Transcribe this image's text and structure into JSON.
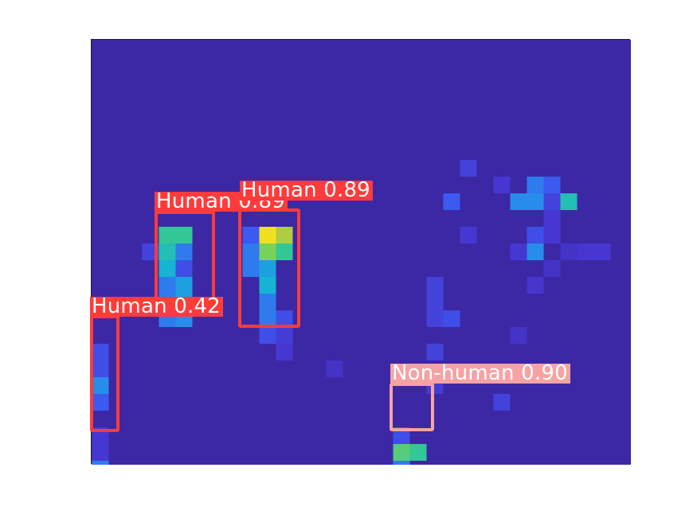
{
  "colors": {
    "background": "#3c28a4",
    "human": "#ff3b3b",
    "non_human": "#f6a3a3",
    "label_text": "#ffffff"
  },
  "detections": [
    {
      "class": "human",
      "label": "Human 0.89"
    },
    {
      "class": "human",
      "label": "Human 0.89"
    },
    {
      "class": "human",
      "label": "Human 0.42"
    },
    {
      "class": "non-human",
      "label": "Non-human 0.90"
    }
  ],
  "heatmap_cells": [
    {
      "col": 22,
      "row": 7,
      "v": 0.25
    },
    {
      "col": 24,
      "row": 8,
      "v": 0.2
    },
    {
      "col": 26,
      "row": 8,
      "v": 0.45
    },
    {
      "col": 27,
      "row": 8,
      "v": 0.35
    },
    {
      "col": 21,
      "row": 9,
      "v": 0.35
    },
    {
      "col": 25,
      "row": 9,
      "v": 0.5
    },
    {
      "col": 26,
      "row": 9,
      "v": 0.5
    },
    {
      "col": 27,
      "row": 9,
      "v": 0.25
    },
    {
      "col": 28,
      "row": 9,
      "v": 0.65
    },
    {
      "col": 27,
      "row": 10,
      "v": 0.2
    },
    {
      "col": 22,
      "row": 11,
      "v": 0.2
    },
    {
      "col": 26,
      "row": 11,
      "v": 0.3
    },
    {
      "col": 27,
      "row": 11,
      "v": 0.2
    },
    {
      "col": 25,
      "row": 12,
      "v": 0.2
    },
    {
      "col": 26,
      "row": 12,
      "v": 0.5
    },
    {
      "col": 28,
      "row": 12,
      "v": 0.15
    },
    {
      "col": 29,
      "row": 12,
      "v": 0.2
    },
    {
      "col": 30,
      "row": 12,
      "v": 0.2
    },
    {
      "col": 27,
      "row": 13,
      "v": 0.15
    },
    {
      "col": 20,
      "row": 14,
      "v": 0.25
    },
    {
      "col": 26,
      "row": 14,
      "v": 0.18
    },
    {
      "col": 20,
      "row": 15,
      "v": 0.25
    },
    {
      "col": 20,
      "row": 16,
      "v": 0.25
    },
    {
      "col": 21,
      "row": 16,
      "v": 0.3
    },
    {
      "col": 25,
      "row": 17,
      "v": 0.15
    },
    {
      "col": 20,
      "row": 18,
      "v": 0.25
    },
    {
      "col": 14,
      "row": 19,
      "v": 0.15
    },
    {
      "col": 20,
      "row": 20,
      "v": 0.22
    },
    {
      "col": 24,
      "row": 21,
      "v": 0.25
    },
    {
      "col": 4,
      "row": 11,
      "v": 0.7
    },
    {
      "col": 5,
      "row": 11,
      "v": 0.7
    },
    {
      "col": 4,
      "row": 12,
      "v": 0.7
    },
    {
      "col": 5,
      "row": 12,
      "v": 0.45
    },
    {
      "col": 4,
      "row": 13,
      "v": 0.6
    },
    {
      "col": 5,
      "row": 13,
      "v": 0.3
    },
    {
      "col": 4,
      "row": 14,
      "v": 0.45
    },
    {
      "col": 5,
      "row": 14,
      "v": 0.55
    },
    {
      "col": 4,
      "row": 15,
      "v": 0.45
    },
    {
      "col": 5,
      "row": 15,
      "v": 0.55
    },
    {
      "col": 4,
      "row": 16,
      "v": 0.45
    },
    {
      "col": 5,
      "row": 16,
      "v": 0.5
    },
    {
      "col": 4,
      "row": 12,
      "v": 0.65
    },
    {
      "col": 3,
      "row": 12,
      "v": 0.25
    },
    {
      "col": 9,
      "row": 11,
      "v": 0.35
    },
    {
      "col": 10,
      "row": 11,
      "v": 0.95
    },
    {
      "col": 11,
      "row": 11,
      "v": 0.85
    },
    {
      "col": 9,
      "row": 12,
      "v": 0.45
    },
    {
      "col": 10,
      "row": 12,
      "v": 0.8
    },
    {
      "col": 11,
      "row": 12,
      "v": 0.7
    },
    {
      "col": 9,
      "row": 13,
      "v": 0.45
    },
    {
      "col": 10,
      "row": 13,
      "v": 0.55
    },
    {
      "col": 10,
      "row": 14,
      "v": 0.6
    },
    {
      "col": 10,
      "row": 15,
      "v": 0.45
    },
    {
      "col": 10,
      "row": 16,
      "v": 0.45
    },
    {
      "col": 11,
      "row": 16,
      "v": 0.3
    },
    {
      "col": 10,
      "row": 17,
      "v": 0.3
    },
    {
      "col": 11,
      "row": 17,
      "v": 0.22
    },
    {
      "col": 11,
      "row": 18,
      "v": 0.2
    },
    {
      "col": 0,
      "row": 18,
      "v": 0.3
    },
    {
      "col": 0,
      "row": 19,
      "v": 0.3
    },
    {
      "col": 0,
      "row": 20,
      "v": 0.5
    },
    {
      "col": 0,
      "row": 21,
      "v": 0.35
    },
    {
      "col": 0,
      "row": 23,
      "v": 0.2
    },
    {
      "col": 0,
      "row": 24,
      "v": 0.2
    },
    {
      "col": 0,
      "row": 25,
      "v": 0.45
    },
    {
      "col": 18,
      "row": 23,
      "v": 0.3
    },
    {
      "col": 18,
      "row": 24,
      "v": 0.75
    },
    {
      "col": 19,
      "row": 24,
      "v": 0.7
    },
    {
      "col": 18,
      "row": 25,
      "v": 0.45
    }
  ]
}
